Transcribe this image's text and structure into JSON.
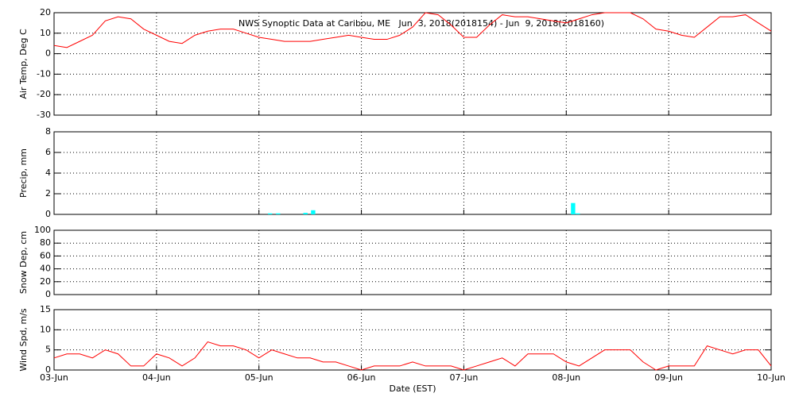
{
  "chart_data": [
    {
      "type": "line",
      "title": "NWS Synoptic Data at Caribou, ME   Jun  3, 2018(2018154) - Jun  9, 2018(2018160)",
      "ylabel": "Air Temp, Deg C",
      "xlim": [
        0,
        168
      ],
      "xticks": [
        0,
        24,
        48,
        72,
        96,
        120,
        144,
        168
      ],
      "ylim": [
        -30,
        20
      ],
      "yticks": [
        -30,
        -20,
        -10,
        0,
        10,
        20
      ],
      "grid": true,
      "x": [
        0,
        3,
        6,
        9,
        12,
        15,
        18,
        21,
        24,
        27,
        30,
        33,
        36,
        39,
        42,
        45,
        48,
        51,
        54,
        57,
        60,
        63,
        66,
        69,
        72,
        75,
        78,
        81,
        84,
        87,
        90,
        93,
        96,
        99,
        102,
        105,
        108,
        111,
        114,
        117,
        120,
        123,
        126,
        129,
        132,
        135,
        138,
        141,
        144,
        147,
        150,
        153,
        156,
        159,
        162,
        165,
        168
      ],
      "series": [
        {
          "color": "#ff0000",
          "values": [
            4,
            3,
            6,
            9,
            16,
            18,
            17,
            12,
            9,
            6,
            5,
            9,
            11,
            12,
            12,
            10,
            8,
            7,
            6,
            6,
            6,
            7,
            8,
            9,
            8,
            7,
            7,
            9,
            13,
            20,
            19,
            14,
            8,
            8,
            14,
            19,
            18,
            18,
            17,
            16,
            15,
            17,
            19,
            20,
            20,
            20,
            17,
            12,
            11,
            9,
            8,
            13,
            18,
            18,
            19,
            15,
            11
          ]
        }
      ]
    },
    {
      "type": "bar",
      "ylabel": "Precip, mm",
      "xlim": [
        0,
        168
      ],
      "xticks": [
        0,
        24,
        48,
        72,
        96,
        120,
        144,
        168
      ],
      "ylim": [
        0,
        8
      ],
      "yticks": [
        0,
        2,
        4,
        6,
        8
      ],
      "grid": true,
      "x": [
        50.6,
        52.5,
        58.9,
        60.7,
        121.6,
        122.7
      ],
      "series": [
        {
          "color": "#00ffff",
          "values": [
            0.1,
            0.1,
            0.15,
            0.4,
            1.1,
            0.1
          ]
        }
      ]
    },
    {
      "type": "line",
      "ylabel": "Snow Dep, cm",
      "xlim": [
        0,
        168
      ],
      "xticks": [
        0,
        24,
        48,
        72,
        96,
        120,
        144,
        168
      ],
      "ylim": [
        0,
        100
      ],
      "yticks": [
        0,
        20,
        40,
        60,
        80,
        100
      ],
      "grid": true,
      "x": [],
      "series": []
    },
    {
      "type": "line",
      "ylabel": "Wind Spd, m/s",
      "xlabel": "Date (EST)",
      "xlim": [
        0,
        168
      ],
      "xticks": [
        {
          "value": 0,
          "label": "03-Jun"
        },
        {
          "value": 24,
          "label": "04-Jun"
        },
        {
          "value": 48,
          "label": "05-Jun"
        },
        {
          "value": 72,
          "label": "06-Jun"
        },
        {
          "value": 96,
          "label": "07-Jun"
        },
        {
          "value": 120,
          "label": "08-Jun"
        },
        {
          "value": 144,
          "label": "09-Jun"
        },
        {
          "value": 168,
          "label": "10-Jun"
        }
      ],
      "ylim": [
        0,
        15
      ],
      "yticks": [
        0,
        5,
        10,
        15
      ],
      "grid": true,
      "x": [
        0,
        3,
        6,
        9,
        12,
        15,
        18,
        21,
        24,
        27,
        30,
        33,
        36,
        39,
        42,
        45,
        48,
        51,
        54,
        57,
        60,
        63,
        66,
        69,
        72,
        75,
        78,
        81,
        84,
        87,
        90,
        93,
        96,
        99,
        102,
        105,
        108,
        111,
        114,
        117,
        120,
        123,
        126,
        129,
        132,
        135,
        138,
        141,
        144,
        147,
        150,
        153,
        156,
        159,
        162,
        165,
        168
      ],
      "series": [
        {
          "color": "#ff0000",
          "values": [
            3,
            4,
            4,
            3,
            5,
            4,
            1,
            1,
            4,
            3,
            1,
            3,
            7,
            6,
            6,
            5,
            3,
            5,
            4,
            3,
            3,
            2,
            2,
            1,
            0,
            1,
            1,
            1,
            2,
            1,
            1,
            1,
            0,
            1,
            2,
            3,
            1,
            4,
            4,
            4,
            2,
            1,
            3,
            5,
            5,
            5,
            2,
            0,
            1,
            1,
            1,
            6,
            5,
            4,
            5,
            5,
            1
          ]
        }
      ]
    }
  ]
}
